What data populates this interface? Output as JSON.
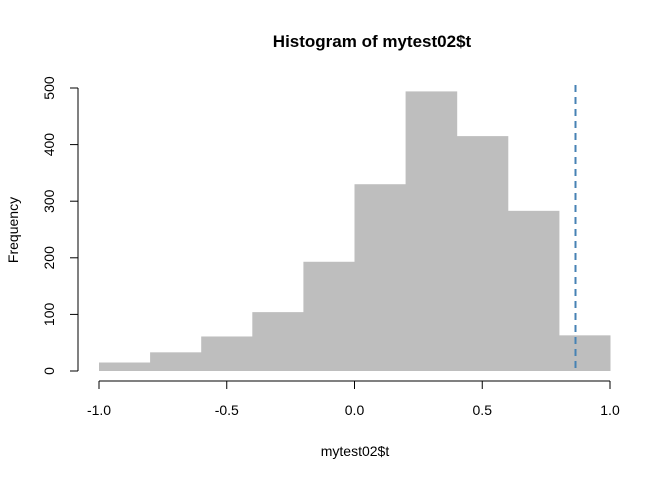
{
  "chart_data": {
    "type": "bar",
    "subtype": "histogram",
    "title": "Histogram of mytest02$t",
    "xlabel": "mytest02$t",
    "ylabel": "Frequency",
    "bins": [
      {
        "x0": -1.0,
        "x1": -0.8,
        "count": 15
      },
      {
        "x0": -0.8,
        "x1": -0.6,
        "count": 33
      },
      {
        "x0": -0.6,
        "x1": -0.4,
        "count": 61
      },
      {
        "x0": -0.4,
        "x1": -0.2,
        "count": 104
      },
      {
        "x0": -0.2,
        "x1": 0.0,
        "count": 193
      },
      {
        "x0": 0.0,
        "x1": 0.2,
        "count": 330
      },
      {
        "x0": 0.2,
        "x1": 0.4,
        "count": 494
      },
      {
        "x0": 0.4,
        "x1": 0.6,
        "count": 415
      },
      {
        "x0": 0.6,
        "x1": 0.8,
        "count": 283
      },
      {
        "x0": 0.8,
        "x1": 1.0,
        "count": 63
      }
    ],
    "xlim": [
      -1.0,
      1.0
    ],
    "ylim": [
      0,
      500
    ],
    "xticks": [
      -1.0,
      -0.5,
      0.0,
      0.5,
      1.0
    ],
    "xtick_labels": [
      "-1.0",
      "-0.5",
      "0.0",
      "0.5",
      "1.0"
    ],
    "yticks": [
      0,
      100,
      200,
      300,
      400,
      500
    ],
    "ytick_labels": [
      "0",
      "100",
      "200",
      "300",
      "400",
      "500"
    ],
    "reference_line": {
      "x": 0.865,
      "color": "#4682b4",
      "style": "dashed"
    },
    "bar_color": "#bebebe",
    "grid": false,
    "legend": "none"
  }
}
